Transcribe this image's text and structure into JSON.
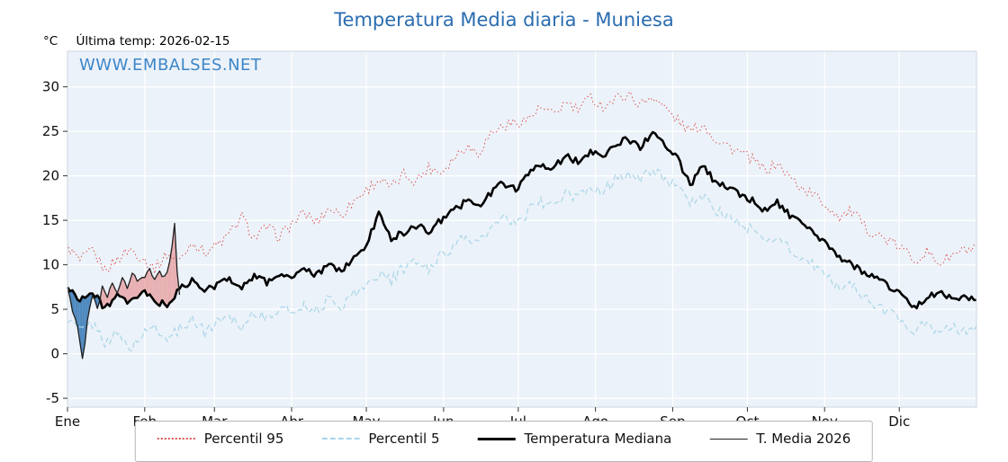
{
  "title": "Temperatura Media diaria - Muniesa",
  "watermark": "WWW.EMBALSES.NET",
  "header": {
    "unit_label": "°C",
    "last_temp_label": "Última temp: 2026-02-15"
  },
  "legend": {
    "items": [
      "Percentil 95",
      "Percentil 5",
      "Temperatura Mediana",
      "T. Media 2026"
    ]
  },
  "chart_data": {
    "type": "line",
    "title": "Temperatura Media diaria - Muniesa",
    "xlabel": "",
    "ylabel": "°C",
    "x_tick_labels": [
      "Ene",
      "Feb",
      "Mar",
      "Abr",
      "May",
      "Jun",
      "Jul",
      "Ago",
      "Sep",
      "Oct",
      "Nov",
      "Dic"
    ],
    "month_start_days": [
      0,
      31,
      59,
      90,
      120,
      151,
      181,
      212,
      243,
      273,
      304,
      334
    ],
    "y_ticks": [
      -5,
      0,
      5,
      10,
      15,
      20,
      25,
      30
    ],
    "ylim": [
      -6,
      34
    ],
    "grid": true,
    "legend_position": "bottom",
    "sample_step_days": 5,
    "colors": {
      "plot_bg": "#ecf2f9",
      "grid": "#ffffff",
      "spine": "#ccd6df",
      "title": "#2a6cb0",
      "watermark": "#3d86c9",
      "fill_above_median": "#e79a9a",
      "fill_below_median": "#3d7db8"
    },
    "series": [
      {
        "name": "Percentil 95",
        "style": "dotted",
        "color": "#d9534f",
        "values": [
          12.0,
          10.4,
          11.6,
          9.4,
          10.6,
          11.8,
          10.8,
          9.6,
          11.2,
          10.4,
          12.6,
          11.4,
          12.2,
          13.4,
          15.4,
          13.0,
          14.2,
          13.2,
          14.6,
          15.8,
          14.8,
          16.4,
          15.6,
          17.2,
          18.4,
          19.6,
          18.6,
          20.2,
          19.4,
          21.0,
          20.4,
          22.0,
          23.4,
          22.6,
          24.8,
          25.6,
          26.0,
          26.4,
          27.6,
          26.8,
          28.2,
          27.4,
          28.8,
          27.8,
          28.6,
          29.2,
          28.0,
          29.0,
          27.6,
          26.2,
          25.0,
          25.8,
          24.2,
          23.4,
          22.6,
          21.8,
          20.6,
          21.4,
          19.8,
          18.6,
          17.8,
          16.6,
          15.4,
          16.0,
          14.2,
          13.4,
          12.6,
          11.8,
          10.6,
          11.4,
          10.2,
          11.0,
          11.6
        ]
      },
      {
        "name": "Percentil 5",
        "style": "dashed",
        "color": "#a9d6e8",
        "values": [
          4.0,
          2.6,
          3.4,
          1.4,
          2.2,
          0.6,
          2.0,
          3.2,
          1.6,
          2.8,
          4.0,
          2.4,
          3.6,
          4.4,
          3.0,
          4.8,
          3.8,
          5.2,
          4.6,
          5.6,
          4.8,
          6.2,
          5.4,
          6.8,
          7.6,
          9.0,
          8.2,
          9.6,
          10.4,
          9.4,
          11.2,
          12.0,
          13.2,
          12.4,
          14.0,
          15.2,
          14.4,
          16.0,
          17.2,
          16.4,
          18.0,
          17.4,
          18.8,
          18.2,
          19.6,
          20.4,
          19.4,
          20.8,
          19.8,
          18.4,
          17.0,
          17.8,
          16.2,
          15.4,
          14.6,
          13.8,
          12.6,
          13.2,
          11.8,
          10.6,
          9.8,
          8.6,
          7.4,
          8.0,
          6.2,
          5.4,
          4.6,
          3.8,
          2.6,
          3.4,
          2.2,
          3.0,
          2.6
        ]
      },
      {
        "name": "Temperatura Mediana",
        "style": "solid-thick",
        "color": "#000000",
        "values": [
          7.4,
          6.2,
          6.8,
          5.2,
          6.4,
          5.6,
          7.0,
          6.0,
          5.4,
          7.2,
          8.2,
          7.0,
          7.8,
          8.4,
          7.6,
          8.8,
          8.0,
          9.0,
          8.6,
          9.4,
          8.8,
          10.0,
          9.4,
          10.6,
          12.2,
          15.8,
          13.0,
          13.6,
          14.4,
          13.8,
          15.0,
          16.0,
          17.2,
          16.6,
          18.0,
          19.2,
          18.6,
          20.0,
          21.4,
          20.8,
          22.2,
          21.6,
          22.8,
          22.4,
          23.4,
          24.2,
          23.2,
          24.8,
          23.6,
          22.0,
          19.0,
          21.0,
          19.4,
          18.8,
          18.0,
          17.2,
          16.2,
          17.0,
          15.6,
          14.4,
          13.4,
          12.2,
          10.8,
          10.0,
          9.2,
          8.4,
          7.6,
          6.8,
          5.2,
          6.2,
          7.0,
          6.4,
          6.2
        ]
      },
      {
        "name": "T. Media 2026",
        "style": "solid-thin",
        "color": "#1f1f1f",
        "x_days": [
          0,
          2,
          4,
          6,
          8,
          10,
          12,
          14,
          16,
          18,
          20,
          22,
          24,
          26,
          28,
          31,
          33,
          35,
          37,
          39,
          41,
          43,
          44,
          45
        ],
        "values": [
          7.6,
          5.0,
          3.2,
          -0.8,
          3.6,
          6.6,
          5.0,
          7.4,
          6.2,
          8.0,
          6.8,
          8.8,
          7.6,
          9.2,
          8.2,
          8.6,
          9.4,
          8.4,
          9.2,
          8.6,
          10.2,
          14.4,
          9.0,
          6.4
        ]
      }
    ]
  }
}
